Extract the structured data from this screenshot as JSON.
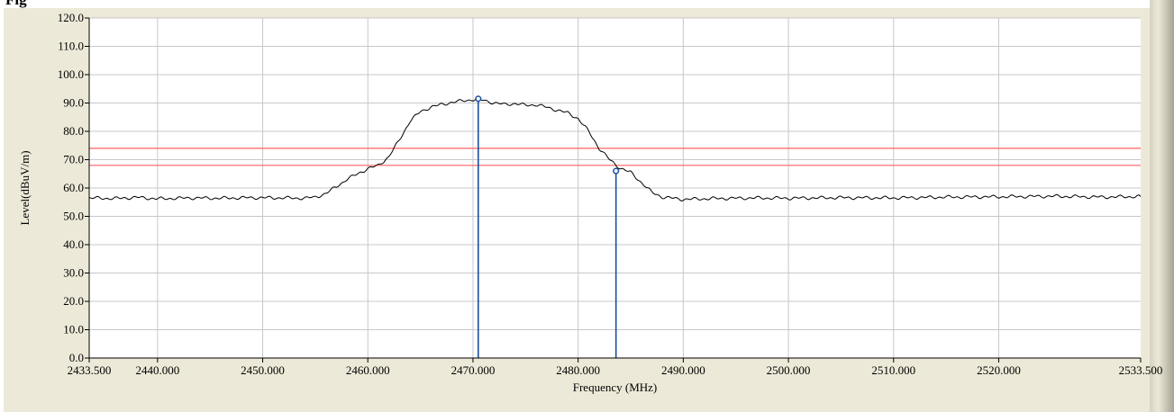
{
  "caption": "Fig",
  "chart_data": {
    "type": "line",
    "title": "",
    "xlabel": "Frequency (MHz)",
    "ylabel": "Level(dBuV/m)",
    "xlim": [
      2433.5,
      2533.5
    ],
    "ylim": [
      0,
      120
    ],
    "grid": true,
    "x_ticks": [
      2433.5,
      2440,
      2450,
      2460,
      2470,
      2480,
      2490,
      2500,
      2510,
      2520,
      2533.5
    ],
    "x_tick_labels": [
      "2433.500",
      "2440.000",
      "2450.000",
      "2460.000",
      "2470.000",
      "2480.000",
      "2490.000",
      "2500.000",
      "2510.000",
      "2520.000",
      "2533.500"
    ],
    "y_ticks": [
      0,
      10,
      20,
      30,
      40,
      50,
      60,
      70,
      80,
      90,
      100,
      110,
      120
    ],
    "y_tick_labels": [
      "0.0",
      "10.0",
      "20.0",
      "30.0",
      "40.0",
      "50.0",
      "60.0",
      "70.0",
      "80.0",
      "90.0",
      "100.0",
      "110.0",
      "120.0"
    ],
    "series": [
      {
        "color": "#000000",
        "x": [
          2433.5,
          2436,
          2438,
          2440,
          2443,
          2446,
          2449,
          2452,
          2454,
          2455,
          2456,
          2457,
          2458,
          2459,
          2460,
          2461,
          2462,
          2463,
          2464,
          2465,
          2466,
          2467,
          2468,
          2469,
          2470,
          2471,
          2472,
          2473,
          2474,
          2475,
          2476,
          2477,
          2478,
          2479,
          2480,
          2481,
          2482,
          2483,
          2484,
          2485,
          2486,
          2487,
          2488,
          2490,
          2493,
          2497,
          2500,
          2505,
          2510,
          2515,
          2520,
          2525,
          2530,
          2533.5
        ],
        "y": [
          56.5,
          56.3,
          56.7,
          56.2,
          56.5,
          56.4,
          56.6,
          56.5,
          56.4,
          56.8,
          58.0,
          60.5,
          63.0,
          65.0,
          66.8,
          68.0,
          71.0,
          77.0,
          83.5,
          87.0,
          88.5,
          89.5,
          90.2,
          90.8,
          91.2,
          91.0,
          90.0,
          89.5,
          89.8,
          89.2,
          89.4,
          88.5,
          87.5,
          86.5,
          84.5,
          80.0,
          74.0,
          70.0,
          67.0,
          65.5,
          62.0,
          58.5,
          56.8,
          56.0,
          56.3,
          56.5,
          56.4,
          56.6,
          56.5,
          56.8,
          56.9,
          57.1,
          56.8,
          57.0
        ]
      }
    ],
    "limit_lines": [
      {
        "y": 74,
        "color": "#ff6060"
      },
      {
        "y": 68,
        "color": "#ff6060"
      }
    ],
    "markers": [
      {
        "x": 2470.5,
        "y": 91.5,
        "color": "#1a4fa0"
      },
      {
        "x": 2483.6,
        "y": 66.0,
        "color": "#1a4fa0"
      }
    ],
    "colors": {
      "plot_background": "#ffffff",
      "grid": "#c8c8c8",
      "frame": "#ece9d8"
    }
  }
}
